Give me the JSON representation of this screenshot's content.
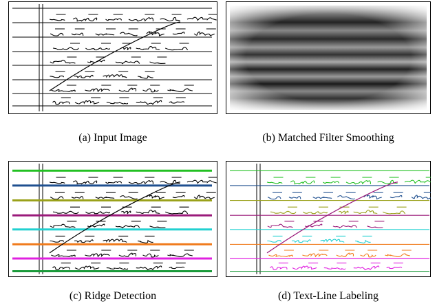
{
  "panels": [
    {
      "caption": "(a) Input Image"
    },
    {
      "caption": "(b) Matched Filter Smoothing"
    },
    {
      "caption": "(c) Ridge Detection"
    },
    {
      "caption": "(d) Text-Line Labeling"
    }
  ]
}
